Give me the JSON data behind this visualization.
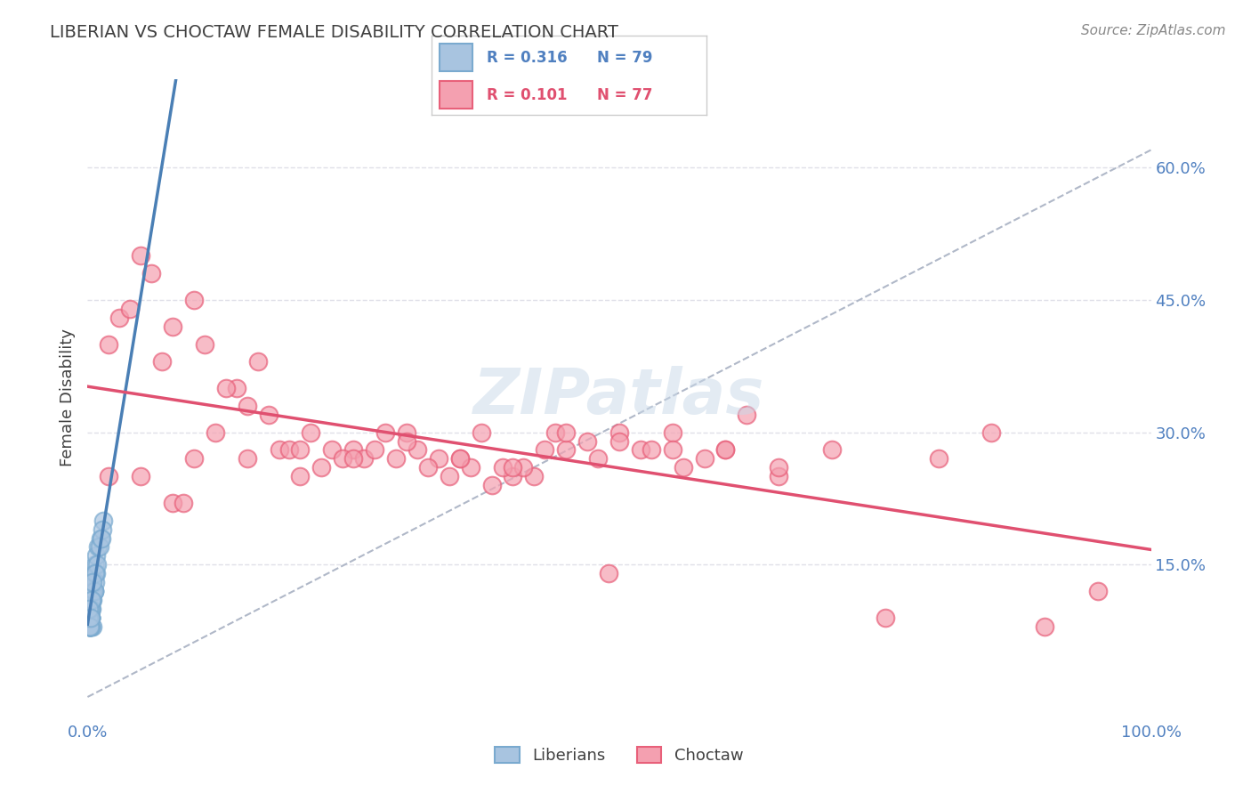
{
  "title": "LIBERIAN VS CHOCTAW FEMALE DISABILITY CORRELATION CHART",
  "source": "Source: ZipAtlas.com",
  "xlabel": "",
  "ylabel": "Female Disability",
  "xlim": [
    0.0,
    1.0
  ],
  "ylim": [
    -0.02,
    0.7
  ],
  "yticks": [
    0.15,
    0.3,
    0.45,
    0.6
  ],
  "ytick_labels": [
    "15.0%",
    "30.0%",
    "45.0%",
    "60.0%"
  ],
  "xticks": [
    0.0,
    0.25,
    0.5,
    0.75,
    1.0
  ],
  "xtick_labels": [
    "0.0%",
    "",
    "",
    "",
    "100.0%"
  ],
  "liberian_R": 0.316,
  "liberian_N": 79,
  "choctaw_R": 0.101,
  "choctaw_N": 77,
  "liberian_color": "#a8c4e0",
  "liberian_edge": "#7aaacf",
  "choctaw_color": "#f4a0b0",
  "choctaw_edge": "#e8607a",
  "liberian_line_color": "#4a7fb5",
  "choctaw_line_color": "#e05070",
  "ref_line_color": "#b0b8c8",
  "watermark_color": "#c8d8e8",
  "title_color": "#404040",
  "axis_label_color": "#404040",
  "tick_color": "#5080c0",
  "grid_color": "#e0e0e8",
  "background_color": "#ffffff",
  "liberian_x": [
    0.001,
    0.002,
    0.001,
    0.003,
    0.002,
    0.001,
    0.003,
    0.002,
    0.001,
    0.004,
    0.002,
    0.001,
    0.003,
    0.001,
    0.002,
    0.005,
    0.001,
    0.003,
    0.002,
    0.004,
    0.001,
    0.002,
    0.006,
    0.003,
    0.001,
    0.002,
    0.007,
    0.004,
    0.001,
    0.003,
    0.005,
    0.002,
    0.001,
    0.004,
    0.006,
    0.002,
    0.003,
    0.001,
    0.008,
    0.002,
    0.01,
    0.003,
    0.001,
    0.012,
    0.004,
    0.002,
    0.015,
    0.001,
    0.003,
    0.008,
    0.006,
    0.002,
    0.001,
    0.003,
    0.014,
    0.004,
    0.002,
    0.009,
    0.001,
    0.005,
    0.003,
    0.007,
    0.002,
    0.001,
    0.011,
    0.004,
    0.002,
    0.001,
    0.006,
    0.003,
    0.002,
    0.013,
    0.001,
    0.004,
    0.007,
    0.002,
    0.001,
    0.003,
    0.005
  ],
  "liberian_y": [
    0.1,
    0.09,
    0.11,
    0.08,
    0.12,
    0.1,
    0.13,
    0.09,
    0.11,
    0.08,
    0.1,
    0.12,
    0.09,
    0.11,
    0.1,
    0.08,
    0.13,
    0.09,
    0.11,
    0.1,
    0.12,
    0.09,
    0.14,
    0.11,
    0.1,
    0.08,
    0.15,
    0.12,
    0.1,
    0.09,
    0.11,
    0.1,
    0.08,
    0.13,
    0.12,
    0.11,
    0.09,
    0.1,
    0.16,
    0.08,
    0.17,
    0.1,
    0.09,
    0.18,
    0.11,
    0.08,
    0.2,
    0.1,
    0.09,
    0.14,
    0.12,
    0.08,
    0.09,
    0.1,
    0.19,
    0.11,
    0.08,
    0.15,
    0.1,
    0.12,
    0.09,
    0.13,
    0.08,
    0.1,
    0.17,
    0.11,
    0.09,
    0.08,
    0.12,
    0.1,
    0.08,
    0.18,
    0.09,
    0.11,
    0.14,
    0.08,
    0.1,
    0.09,
    0.13
  ],
  "choctaw_x": [
    0.02,
    0.05,
    0.08,
    0.12,
    0.15,
    0.2,
    0.25,
    0.3,
    0.35,
    0.4,
    0.08,
    0.14,
    0.18,
    0.22,
    0.28,
    0.33,
    0.38,
    0.45,
    0.5,
    0.1,
    0.16,
    0.21,
    0.26,
    0.31,
    0.36,
    0.42,
    0.48,
    0.55,
    0.6,
    0.06,
    0.11,
    0.17,
    0.23,
    0.29,
    0.34,
    0.39,
    0.44,
    0.52,
    0.58,
    0.65,
    0.03,
    0.09,
    0.13,
    0.19,
    0.24,
    0.32,
    0.37,
    0.43,
    0.49,
    0.56,
    0.04,
    0.07,
    0.15,
    0.27,
    0.35,
    0.41,
    0.47,
    0.53,
    0.62,
    0.7,
    0.02,
    0.1,
    0.2,
    0.3,
    0.4,
    0.5,
    0.6,
    0.05,
    0.25,
    0.45,
    0.55,
    0.65,
    0.75,
    0.8,
    0.85,
    0.9,
    0.95
  ],
  "choctaw_y": [
    0.4,
    0.5,
    0.22,
    0.3,
    0.27,
    0.25,
    0.28,
    0.3,
    0.27,
    0.25,
    0.42,
    0.35,
    0.28,
    0.26,
    0.3,
    0.27,
    0.24,
    0.28,
    0.3,
    0.45,
    0.38,
    0.3,
    0.27,
    0.28,
    0.26,
    0.25,
    0.27,
    0.3,
    0.28,
    0.48,
    0.4,
    0.32,
    0.28,
    0.27,
    0.25,
    0.26,
    0.3,
    0.28,
    0.27,
    0.25,
    0.43,
    0.22,
    0.35,
    0.28,
    0.27,
    0.26,
    0.3,
    0.28,
    0.14,
    0.26,
    0.44,
    0.38,
    0.33,
    0.28,
    0.27,
    0.26,
    0.29,
    0.28,
    0.32,
    0.28,
    0.25,
    0.27,
    0.28,
    0.29,
    0.26,
    0.29,
    0.28,
    0.25,
    0.27,
    0.3,
    0.28,
    0.26,
    0.09,
    0.27,
    0.3,
    0.08,
    0.12
  ]
}
